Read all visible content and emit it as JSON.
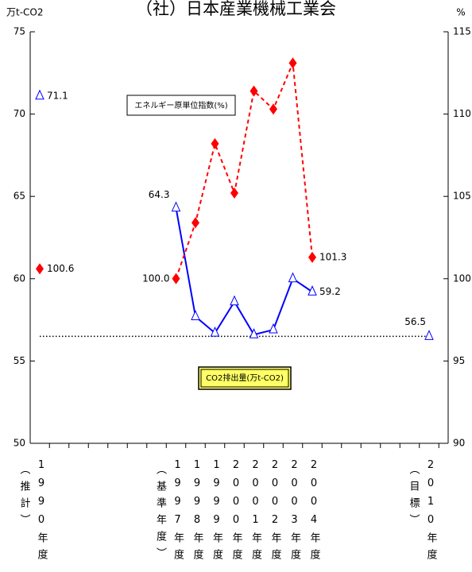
{
  "chart_data": {
    "type": "line",
    "title": "（社）日本産業機械工業会",
    "y_label": "万t-CO2",
    "y2_label": "%",
    "categories": [
      "1990年度",
      null,
      null,
      null,
      null,
      null,
      null,
      "1997年度",
      "1998年度",
      "1999年度",
      "2000年度",
      "2001年度",
      "2002年度",
      "2003年度",
      "2004年度",
      null,
      null,
      null,
      null,
      null,
      "2010年度"
    ],
    "category_notes": [
      "（推計）",
      null,
      null,
      null,
      null,
      null,
      null,
      "（基準年度）",
      null,
      null,
      null,
      null,
      null,
      null,
      null,
      null,
      null,
      null,
      null,
      null,
      "（目標）"
    ],
    "series": [
      {
        "name": "CO2排出量(万t-CO2)",
        "color": "#0000ff",
        "marker": "triangle",
        "line_style": "solid",
        "values": [
          71.1,
          null,
          null,
          null,
          null,
          null,
          null,
          64.3,
          57.7,
          56.7,
          58.6,
          56.6,
          56.9,
          60.0,
          59.2,
          null,
          null,
          null,
          null,
          null,
          56.5
        ],
        "value_labels": [
          "71.1",
          null,
          null,
          null,
          null,
          null,
          null,
          "64.3",
          null,
          null,
          null,
          null,
          null,
          null,
          "59.2",
          null,
          null,
          null,
          null,
          null,
          "56.5"
        ]
      },
      {
        "name": "エネルギー原単位指数(%)",
        "color": "#ff0000",
        "marker": "diamond",
        "line_style": "dashed",
        "axis": "y2",
        "values": [
          100.6,
          null,
          null,
          null,
          null,
          null,
          null,
          100,
          103.4,
          108.2,
          105.2,
          111.4,
          110.3,
          113.1,
          101.3,
          null,
          null,
          null,
          null,
          null,
          null
        ],
        "value_labels": [
          "100.6",
          null,
          null,
          null,
          null,
          null,
          null,
          "100.0",
          null,
          null,
          null,
          null,
          null,
          null,
          "101.3",
          null,
          null,
          null,
          null,
          null,
          null
        ]
      }
    ],
    "reference_line": 56.5,
    "ylim": [
      50,
      75
    ],
    "yticks": [
      50,
      55,
      60,
      65,
      70,
      75
    ],
    "y2lim": [
      90,
      115
    ],
    "y2ticks": [
      90,
      95,
      100,
      105,
      110,
      115
    ],
    "grid": false
  }
}
